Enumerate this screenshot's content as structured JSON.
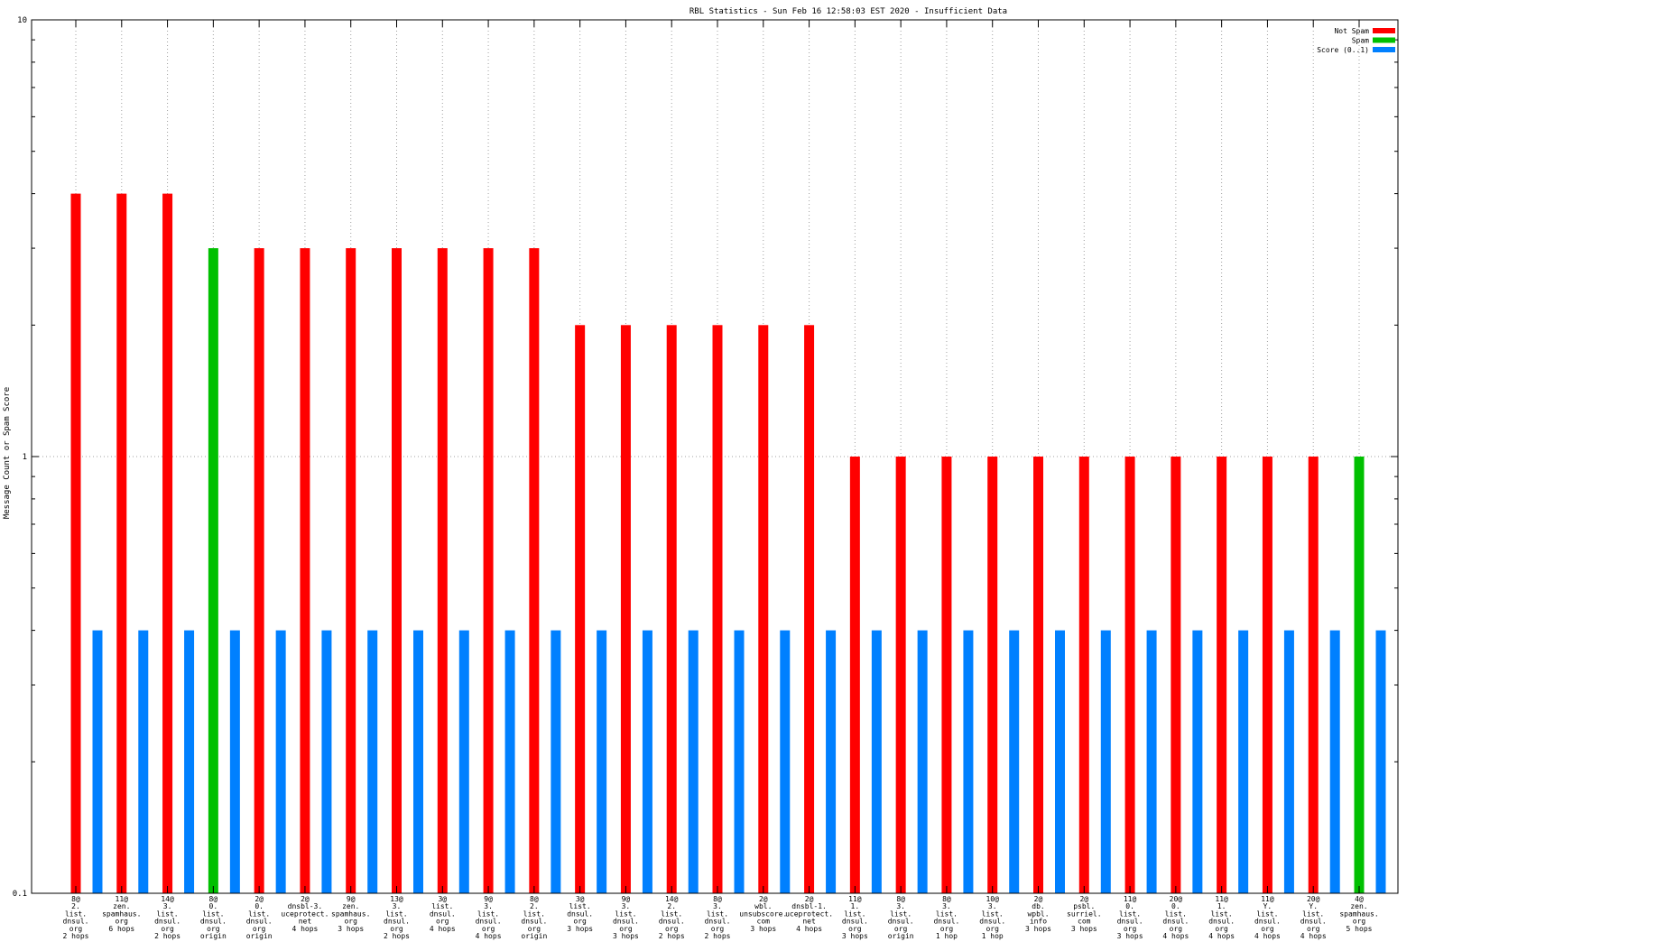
{
  "chart_data": {
    "type": "bar",
    "title": "RBL Statistics - Sun Feb 16 12:58:03 EST 2020 - Insufficient Data",
    "xlabel": "",
    "ylabel": "Message Count or Spam Score",
    "yscale": "log",
    "ylim": [
      0.1,
      10
    ],
    "ytick_labels": [
      "10",
      "1",
      "0.1"
    ],
    "grid": true,
    "legend_position": "top-right",
    "categories": [
      "8@\n2.\nlist.\ndnsul.\norg\n2 hops",
      "11@\nzen.\nspamhaus.\norg\n6 hops",
      "14@\n3.\nlist.\ndnsul.\norg\n2 hops",
      "8@\n0.\nlist.\ndnsul.\norg\norigin",
      "2@\n0.\nlist.\ndnsul.\norg\norigin",
      "2@\ndnsbl-3.\nuceprotect.\nnet\n4 hops",
      "9@\nzen.\nspamhaus.\norg\n3 hops",
      "13@\n3.\nlist.\ndnsul.\norg\n2 hops",
      "3@\nlist.\ndnsul.\norg\n4 hops",
      "9@\n3.\nlist.\ndnsul.\norg\n4 hops",
      "8@\n2.\nlist.\ndnsul.\norg\norigin",
      "3@\nlist.\ndnsul.\norg\n3 hops",
      "9@\n3.\nlist.\ndnsul.\norg\n3 hops",
      "14@\n2.\nlist.\ndnsul.\norg\n2 hops",
      "8@\n3.\nlist.\ndnsul.\norg\n2 hops",
      "2@\nwbl.\nunsubscore.\ncom\n3 hops",
      "2@\ndnsbl-1.\nuceprotect.\nnet\n4 hops",
      "11@\n1.\nlist.\ndnsul.\norg\n3 hops",
      "8@\n3.\nlist.\ndnsul.\norg\norigin",
      "8@\n3.\nlist.\ndnsul.\norg\n1 hop",
      "10@\n3.\nlist.\ndnsul.\norg\n1 hop",
      "2@\ndb.\nwpbl.\ninfo\n3 hops",
      "2@\npsbl.\nsurriel.\ncom\n3 hops",
      "11@\n0.\nlist.\ndnsul.\norg\n3 hops",
      "20@\n0.\nlist.\ndnsul.\norg\n4 hops",
      "11@\n1.\nlist.\ndnsul.\norg\n4 hops",
      "11@\nY.\nlist.\ndnsul.\norg\n4 hops",
      "20@\nY.\nlist.\ndnsul.\norg\n4 hops",
      "4@\nzen.\nspamhaus.\norg\n5 hops"
    ],
    "series": [
      {
        "name": "Not Spam",
        "color": "#ff0000",
        "values": [
          4,
          4,
          4,
          null,
          3,
          3,
          3,
          3,
          3,
          3,
          3,
          2,
          2,
          2,
          2,
          2,
          2,
          1,
          1,
          1,
          1,
          1,
          1,
          1,
          1,
          1,
          1,
          1,
          null
        ]
      },
      {
        "name": "Spam",
        "color": "#00c000",
        "values": [
          null,
          null,
          null,
          3,
          null,
          null,
          null,
          null,
          null,
          null,
          null,
          null,
          null,
          null,
          null,
          null,
          null,
          null,
          null,
          null,
          null,
          null,
          null,
          null,
          null,
          null,
          null,
          null,
          1
        ]
      },
      {
        "name": "Score (0..1)",
        "color": "#0080ff",
        "values": [
          0.4,
          0.4,
          0.4,
          0.4,
          0.4,
          0.4,
          0.4,
          0.4,
          0.4,
          0.4,
          0.4,
          0.4,
          0.4,
          0.4,
          0.4,
          0.4,
          0.4,
          0.4,
          0.4,
          0.4,
          0.4,
          0.4,
          0.4,
          0.4,
          0.4,
          0.4,
          0.4,
          0.4,
          0.4
        ]
      }
    ]
  }
}
